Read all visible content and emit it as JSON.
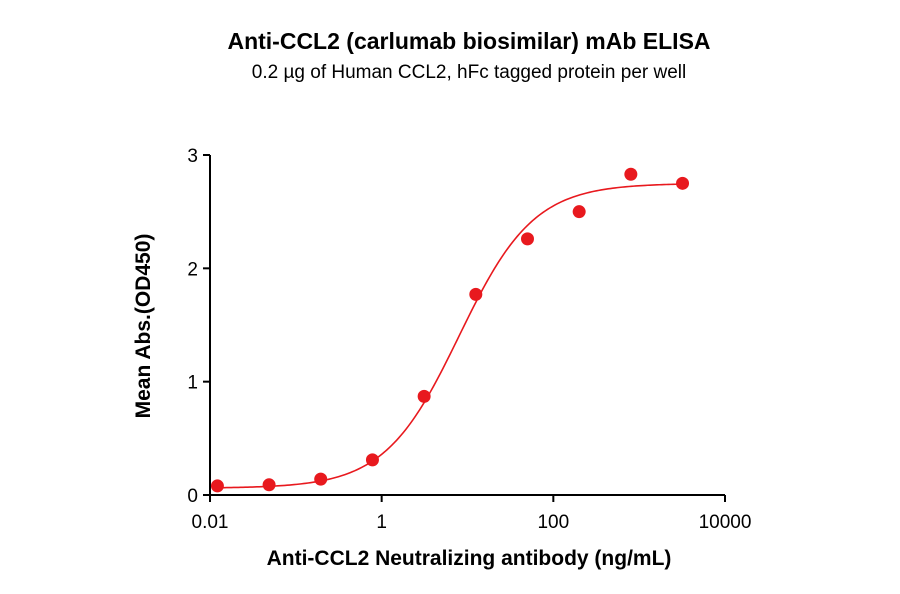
{
  "chart_data": {
    "type": "scatter",
    "title": "Anti-CCL2 (carlumab biosimilar) mAb ELISA",
    "subtitle": "0.2 µg of Human CCL2, hFc tagged protein per well",
    "xlabel": "Anti-CCL2 Neutralizing antibody (ng/mL)",
    "ylabel": "Mean Abs.(OD450)",
    "x_scale": "log10",
    "xlim": [
      0.01,
      10000
    ],
    "ylim": [
      0,
      3
    ],
    "x_ticks": [
      0.01,
      1,
      100,
      10000
    ],
    "x_tick_labels": [
      "0.01",
      "1",
      "100",
      "10000"
    ],
    "y_ticks": [
      0,
      1,
      2,
      3
    ],
    "y_tick_labels": [
      "0",
      "1",
      "2",
      "3"
    ],
    "grid": false,
    "legend": "none",
    "series": [
      {
        "x": [
          0.0122,
          0.0488,
          0.195,
          0.781,
          3.125,
          12.5,
          50,
          200,
          800,
          3200
        ],
        "y": [
          0.08,
          0.09,
          0.14,
          0.31,
          0.87,
          1.77,
          2.26,
          2.5,
          2.83,
          2.75
        ],
        "color": "#e8191e"
      }
    ],
    "fit_curve": {
      "model": "4PL",
      "bottom": 0.06,
      "top": 2.75,
      "ec50": 8.0,
      "hill": 1.0,
      "color": "#e8191e"
    }
  }
}
